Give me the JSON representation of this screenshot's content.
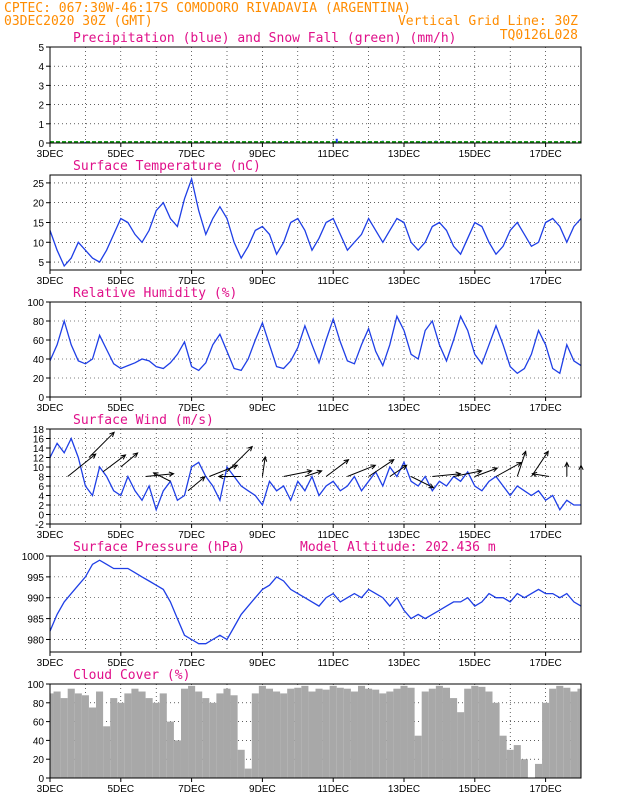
{
  "header": {
    "line1": "CPTEC:  067:30W-46:17S  COMODORO RIVADAVIA (ARGENTINA)",
    "line2_left": "03DEC2020 30Z (GMT)",
    "line2_right": "Vertical Grid Line: 30Z",
    "line3_right": "TQ0126L028"
  },
  "colors": {
    "header": "#ff8c00",
    "title": "#e0108a",
    "line": "#1f3fe6",
    "snow": "#1a9e1a",
    "cloud": "#a8a8a8",
    "wind_arrow": "#000000"
  },
  "x_labels": [
    "3DEC",
    "5DEC",
    "7DEC",
    "9DEC",
    "11DEC",
    "13DEC",
    "15DEC",
    "17DEC"
  ],
  "chart_data": [
    {
      "id": "precip",
      "type": "bar",
      "title": "Precipitation (blue) and Snow Fall (green) (mm/h)",
      "ylim": [
        0,
        5
      ],
      "yticks": [
        0,
        1,
        2,
        3,
        4,
        5
      ],
      "grid": true,
      "series": [
        {
          "name": "Precipitation",
          "color": "#1f3fe6",
          "points": [
            [
              4.0,
              0.06
            ],
            [
              9.6,
              0.05
            ],
            [
              11.1,
              0.22
            ],
            [
              12.0,
              0.08
            ],
            [
              12.4,
              0.12
            ],
            [
              13.5,
              0.06
            ],
            [
              13.7,
              0.1
            ],
            [
              13.9,
              0.12
            ],
            [
              14.2,
              0.08
            ],
            [
              14.6,
              0.05
            ]
          ]
        },
        {
          "name": "Snow Fall",
          "color": "#1a9e1a",
          "points": []
        }
      ]
    },
    {
      "id": "temperature",
      "type": "line",
      "title": "Surface Temperature (nC)",
      "ylim": [
        3,
        27
      ],
      "yticks": [
        5,
        10,
        15,
        20,
        25
      ],
      "grid": true,
      "x": [
        3.0,
        3.2,
        3.4,
        3.6,
        3.8,
        4.0,
        4.2,
        4.4,
        4.6,
        4.8,
        5.0,
        5.2,
        5.4,
        5.6,
        5.8,
        6.0,
        6.2,
        6.4,
        6.6,
        6.8,
        7.0,
        7.2,
        7.4,
        7.6,
        7.8,
        8.0,
        8.2,
        8.4,
        8.6,
        8.8,
        9.0,
        9.2,
        9.4,
        9.6,
        9.8,
        10.0,
        10.2,
        10.4,
        10.6,
        10.8,
        11.0,
        11.2,
        11.4,
        11.6,
        11.8,
        12.0,
        12.2,
        12.4,
        12.6,
        12.8,
        13.0,
        13.2,
        13.4,
        13.6,
        13.8,
        14.0,
        14.2,
        14.4,
        14.6,
        14.8,
        15.0,
        15.2,
        15.4,
        15.6,
        15.8,
        16.0,
        16.2,
        16.4,
        16.6,
        16.8,
        17.0,
        17.2,
        17.4,
        17.6,
        17.8,
        18.0
      ],
      "values": [
        13,
        8,
        4,
        6,
        10,
        8,
        6,
        5,
        8,
        12,
        16,
        15,
        12,
        10,
        13,
        18,
        20,
        16,
        14,
        21,
        26,
        18,
        12,
        16,
        19,
        16,
        10,
        6,
        9,
        13,
        14,
        12,
        7,
        10,
        15,
        16,
        13,
        8,
        11,
        15,
        16,
        12,
        8,
        10,
        12,
        16,
        13,
        10,
        13,
        16,
        15,
        10,
        8,
        10,
        14,
        15,
        13,
        9,
        7,
        11,
        15,
        14,
        10,
        7,
        9,
        13,
        15,
        12,
        9,
        10,
        15,
        16,
        14,
        10,
        14,
        16
      ]
    },
    {
      "id": "humidity",
      "type": "line",
      "title": "Relative Humidity (%)",
      "ylim": [
        0,
        100
      ],
      "yticks": [
        0,
        20,
        40,
        60,
        80,
        100
      ],
      "grid": true,
      "x": [
        3.0,
        3.2,
        3.4,
        3.6,
        3.8,
        4.0,
        4.2,
        4.4,
        4.6,
        4.8,
        5.0,
        5.2,
        5.4,
        5.6,
        5.8,
        6.0,
        6.2,
        6.4,
        6.6,
        6.8,
        7.0,
        7.2,
        7.4,
        7.6,
        7.8,
        8.0,
        8.2,
        8.4,
        8.6,
        8.8,
        9.0,
        9.2,
        9.4,
        9.6,
        9.8,
        10.0,
        10.2,
        10.4,
        10.6,
        10.8,
        11.0,
        11.2,
        11.4,
        11.6,
        11.8,
        12.0,
        12.2,
        12.4,
        12.6,
        12.8,
        13.0,
        13.2,
        13.4,
        13.6,
        13.8,
        14.0,
        14.2,
        14.4,
        14.6,
        14.8,
        15.0,
        15.2,
        15.4,
        15.6,
        15.8,
        16.0,
        16.2,
        16.4,
        16.6,
        16.8,
        17.0,
        17.2,
        17.4,
        17.6,
        17.8,
        18.0
      ],
      "values": [
        38,
        55,
        80,
        55,
        38,
        35,
        40,
        65,
        50,
        35,
        30,
        33,
        36,
        40,
        38,
        32,
        30,
        36,
        45,
        58,
        32,
        28,
        36,
        55,
        66,
        48,
        30,
        28,
        40,
        60,
        78,
        55,
        32,
        30,
        38,
        52,
        75,
        55,
        36,
        60,
        82,
        58,
        38,
        35,
        55,
        72,
        48,
        33,
        55,
        85,
        70,
        45,
        40,
        70,
        80,
        55,
        38,
        60,
        85,
        70,
        45,
        35,
        55,
        75,
        55,
        32,
        25,
        30,
        45,
        70,
        55,
        30,
        25,
        55,
        38,
        33
      ]
    },
    {
      "id": "wind",
      "type": "line",
      "title": "Surface Wind (m/s)",
      "ylim": [
        -2,
        18
      ],
      "yticks": [
        -2,
        0,
        2,
        4,
        6,
        8,
        10,
        12,
        14,
        16,
        18
      ],
      "grid": true,
      "x": [
        3.0,
        3.2,
        3.4,
        3.6,
        3.8,
        4.0,
        4.2,
        4.4,
        4.6,
        4.8,
        5.0,
        5.2,
        5.4,
        5.6,
        5.8,
        6.0,
        6.2,
        6.4,
        6.6,
        6.8,
        7.0,
        7.2,
        7.4,
        7.6,
        7.8,
        8.0,
        8.2,
        8.4,
        8.6,
        8.8,
        9.0,
        9.2,
        9.4,
        9.6,
        9.8,
        10.0,
        10.2,
        10.4,
        10.6,
        10.8,
        11.0,
        11.2,
        11.4,
        11.6,
        11.8,
        12.0,
        12.2,
        12.4,
        12.6,
        12.8,
        13.0,
        13.2,
        13.4,
        13.6,
        13.8,
        14.0,
        14.2,
        14.4,
        14.6,
        14.8,
        15.0,
        15.2,
        15.4,
        15.6,
        15.8,
        16.0,
        16.2,
        16.4,
        16.6,
        16.8,
        17.0,
        17.2,
        17.4,
        17.6,
        17.8,
        18.0
      ],
      "values": [
        12,
        15,
        13,
        16,
        12,
        6,
        4,
        10,
        8,
        5,
        4,
        8,
        5,
        3,
        6,
        1,
        5,
        7,
        3,
        4,
        10,
        11,
        8,
        6,
        3,
        10,
        8,
        6,
        5,
        4,
        2,
        7,
        5,
        6,
        3,
        7,
        5,
        8,
        4,
        6,
        7,
        5,
        6,
        8,
        5,
        7,
        9,
        6,
        10,
        8,
        11,
        7,
        6,
        8,
        5,
        7,
        6,
        8,
        7,
        9,
        6,
        5,
        7,
        8,
        6,
        4,
        6,
        5,
        4,
        5,
        3,
        4,
        1,
        3,
        2,
        2
      ],
      "vectors": [
        {
          "x": 3.5,
          "y": 8,
          "u": 1.0,
          "v": 0.8
        },
        {
          "x": 4.1,
          "y": 12,
          "u": 0.9,
          "v": 0.9
        },
        {
          "x": 4.5,
          "y": 9,
          "u": 0.8,
          "v": 0.6
        },
        {
          "x": 5.0,
          "y": 10,
          "u": 0.6,
          "v": 0.5
        },
        {
          "x": 5.7,
          "y": 8,
          "u": 1.0,
          "v": 0.1
        },
        {
          "x": 6.4,
          "y": 7,
          "u": -0.6,
          "v": 0.3
        },
        {
          "x": 6.9,
          "y": 5,
          "u": 0.6,
          "v": 0.5
        },
        {
          "x": 7.5,
          "y": 8,
          "u": 1.0,
          "v": 0.4
        },
        {
          "x": 8.0,
          "y": 9,
          "u": 0.9,
          "v": 0.9
        },
        {
          "x": 8.4,
          "y": 8,
          "u": -0.8,
          "v": 0.0
        },
        {
          "x": 9.0,
          "y": 8,
          "u": 0.1,
          "v": 0.7
        },
        {
          "x": 9.6,
          "y": 8,
          "u": 1.0,
          "v": 0.2
        },
        {
          "x": 10.2,
          "y": 8,
          "u": 0.6,
          "v": 0.2
        },
        {
          "x": 10.8,
          "y": 8,
          "u": 0.8,
          "v": 0.6
        },
        {
          "x": 11.4,
          "y": 8,
          "u": 1.0,
          "v": 0.4
        },
        {
          "x": 12.0,
          "y": 8,
          "u": 0.9,
          "v": 0.6
        },
        {
          "x": 12.6,
          "y": 8,
          "u": 0.6,
          "v": 0.4
        },
        {
          "x": 13.2,
          "y": 8,
          "u": 0.8,
          "v": -0.4
        },
        {
          "x": 13.8,
          "y": 8,
          "u": 1.0,
          "v": 0.1
        },
        {
          "x": 14.4,
          "y": 8,
          "u": 1.0,
          "v": 0.2
        },
        {
          "x": 15.0,
          "y": 8,
          "u": 0.8,
          "v": 0.3
        },
        {
          "x": 15.6,
          "y": 8,
          "u": 0.9,
          "v": 0.5
        },
        {
          "x": 16.2,
          "y": 8,
          "u": 0.3,
          "v": 0.9
        },
        {
          "x": 16.6,
          "y": 8,
          "u": 0.6,
          "v": 0.9
        },
        {
          "x": 17.1,
          "y": 8,
          "u": -0.6,
          "v": 0.1
        },
        {
          "x": 17.6,
          "y": 8,
          "u": 0.0,
          "v": 0.5
        },
        {
          "x": 18.0,
          "y": 8,
          "u": 0.0,
          "v": 0.4
        }
      ]
    },
    {
      "id": "pressure",
      "type": "line",
      "title": "Surface Pressure (hPa)",
      "annotation": "Model Altitude: 202.436 m",
      "ylim": [
        977,
        1000
      ],
      "yticks": [
        980,
        985,
        990,
        995,
        1000
      ],
      "grid": true,
      "x": [
        3.0,
        3.2,
        3.4,
        3.6,
        3.8,
        4.0,
        4.2,
        4.4,
        4.6,
        4.8,
        5.0,
        5.2,
        5.4,
        5.6,
        5.8,
        6.0,
        6.2,
        6.4,
        6.6,
        6.8,
        7.0,
        7.2,
        7.4,
        7.6,
        7.8,
        8.0,
        8.2,
        8.4,
        8.6,
        8.8,
        9.0,
        9.2,
        9.4,
        9.6,
        9.8,
        10.0,
        10.2,
        10.4,
        10.6,
        10.8,
        11.0,
        11.2,
        11.4,
        11.6,
        11.8,
        12.0,
        12.2,
        12.4,
        12.6,
        12.8,
        13.0,
        13.2,
        13.4,
        13.6,
        13.8,
        14.0,
        14.2,
        14.4,
        14.6,
        14.8,
        15.0,
        15.2,
        15.4,
        15.6,
        15.8,
        16.0,
        16.2,
        16.4,
        16.6,
        16.8,
        17.0,
        17.2,
        17.4,
        17.6,
        17.8,
        18.0
      ],
      "values": [
        982,
        986,
        989,
        991,
        993,
        995,
        998,
        999,
        998,
        997,
        997,
        997,
        996,
        995,
        994,
        993,
        992,
        989,
        985,
        981,
        980,
        979,
        979,
        980,
        981,
        980,
        983,
        986,
        988,
        990,
        992,
        993,
        995,
        994,
        992,
        991,
        990,
        989,
        988,
        990,
        991,
        989,
        990,
        991,
        990,
        992,
        991,
        990,
        988,
        990,
        987,
        985,
        986,
        985,
        986,
        987,
        988,
        989,
        989,
        990,
        988,
        989,
        991,
        990,
        990,
        989,
        991,
        990,
        991,
        992,
        991,
        991,
        990,
        991,
        989,
        988
      ]
    },
    {
      "id": "cloud",
      "type": "bar",
      "title": "Cloud Cover (%)",
      "ylim": [
        0,
        100
      ],
      "yticks": [
        0,
        20,
        40,
        60,
        80,
        100
      ],
      "grid": true,
      "x": [
        3.0,
        3.2,
        3.4,
        3.6,
        3.8,
        4.0,
        4.2,
        4.4,
        4.6,
        4.8,
        5.0,
        5.2,
        5.4,
        5.6,
        5.8,
        6.0,
        6.2,
        6.4,
        6.6,
        6.8,
        7.0,
        7.2,
        7.4,
        7.6,
        7.8,
        8.0,
        8.2,
        8.4,
        8.6,
        8.8,
        9.0,
        9.2,
        9.4,
        9.6,
        9.8,
        10.0,
        10.2,
        10.4,
        10.6,
        10.8,
        11.0,
        11.2,
        11.4,
        11.6,
        11.8,
        12.0,
        12.2,
        12.4,
        12.6,
        12.8,
        13.0,
        13.2,
        13.4,
        13.6,
        13.8,
        14.0,
        14.2,
        14.4,
        14.6,
        14.8,
        15.0,
        15.2,
        15.4,
        15.6,
        15.8,
        16.0,
        16.2,
        16.4,
        16.6,
        16.8,
        17.0,
        17.2,
        17.4,
        17.6,
        17.8,
        18.0
      ],
      "values": [
        90,
        92,
        85,
        95,
        90,
        88,
        75,
        92,
        55,
        85,
        80,
        90,
        95,
        92,
        85,
        80,
        90,
        60,
        40,
        95,
        98,
        92,
        85,
        80,
        90,
        95,
        88,
        30,
        10,
        90,
        98,
        95,
        92,
        90,
        95,
        96,
        98,
        92,
        95,
        94,
        98,
        96,
        95,
        92,
        98,
        95,
        94,
        90,
        92,
        95,
        98,
        96,
        45,
        92,
        95,
        98,
        96,
        85,
        70,
        95,
        98,
        97,
        92,
        80,
        45,
        30,
        35,
        20,
        0,
        15,
        80,
        95,
        98,
        96,
        92,
        95
      ]
    }
  ]
}
